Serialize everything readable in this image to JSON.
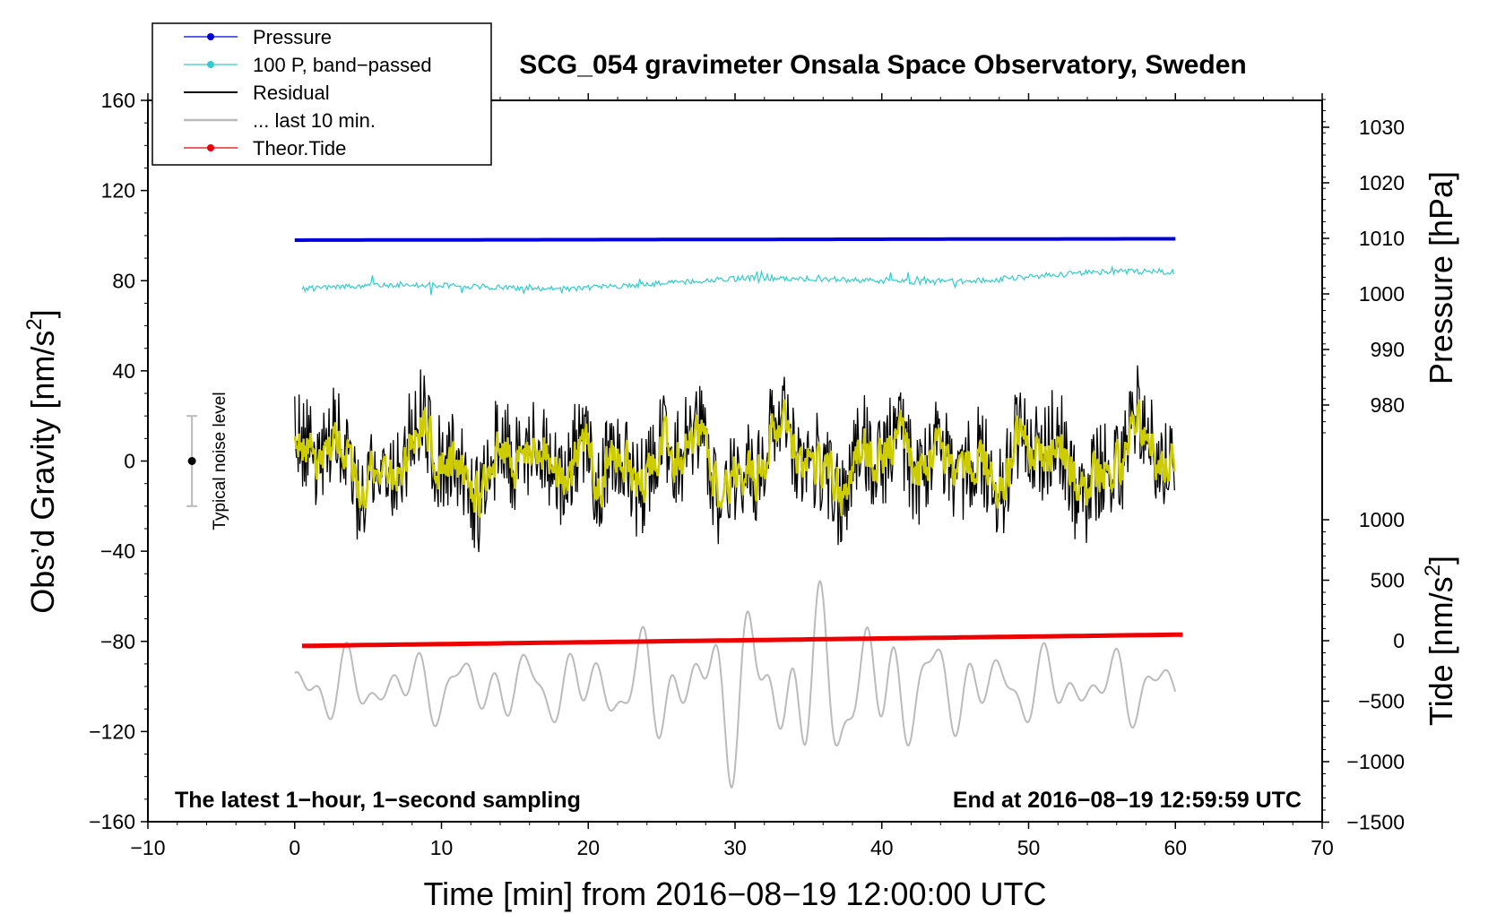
{
  "chart_data": {
    "type": "line",
    "title": "SCG_054 gravimeter Onsala Space Observatory, Sweden",
    "xlabel": "Time [min] from 2016−08−19 12:00:00 UTC",
    "xlim": [
      -10,
      70
    ],
    "xticks": [
      -10,
      0,
      10,
      20,
      30,
      40,
      50,
      60,
      70
    ],
    "xtick_labels": [
      "−10",
      "0",
      "10",
      "20",
      "30",
      "40",
      "50",
      "60",
      "70"
    ],
    "y_left": {
      "label": "Obs’d Gravity [nm/s²]",
      "label_main": "Obs’d Gravity [nm/s",
      "label_sup": "2",
      "label_end": "]",
      "ylim": [
        -160,
        160
      ],
      "ticks": [
        160,
        120,
        80,
        40,
        0,
        -40,
        -80,
        -120,
        -160
      ],
      "tick_labels": [
        "160",
        "120",
        "80",
        "40",
        "0",
        "−40",
        "−80",
        "−120",
        "−160"
      ]
    },
    "y_right_pressure": {
      "label": "Pressure [hPa]",
      "ticks": [
        1030,
        1020,
        1010,
        1000,
        990,
        980
      ],
      "tick_labels": [
        "1030",
        "1020",
        "1010",
        "1000",
        "990",
        "980"
      ]
    },
    "y_right_tide": {
      "label": "Tide [nm/s²]",
      "label_main": "Tide [nm/s",
      "label_sup": "2",
      "label_end": "]",
      "ticks": [
        1000,
        500,
        0,
        -500,
        -1000,
        -1500
      ],
      "tick_labels": [
        "1000",
        "500",
        "0",
        "−500",
        "−1000",
        "−1500"
      ]
    },
    "series": [
      {
        "name": "Pressure",
        "color": "#0000dd",
        "plot_y_start": 98.0,
        "plot_y_end": 98.6,
        "x_start": 0,
        "x_end": 60
      },
      {
        "name": "100 P, band−passed",
        "color": "#33cccc",
        "plot_y_center": 80,
        "plot_y_start": 76,
        "plot_y_end": 83,
        "x_start": 0.5,
        "x_end": 60
      },
      {
        "name": "Residual",
        "color": "#000000",
        "plot_y_center": 0,
        "amplitude": 22,
        "x_start": 0,
        "x_end": 60
      },
      {
        "name": "... last 10 min.",
        "color": "#bbbbbb",
        "plot_y_center": -100,
        "x_start": 0,
        "x_end": 60
      },
      {
        "name": "Theor.Tide",
        "color": "#ee0000",
        "plot_y_start": -82,
        "plot_y_end": -77,
        "x_start": 0.5,
        "x_end": 60.5
      }
    ],
    "smoothed_residual_color": "#cccc00",
    "legend_position": "top-left",
    "noise_level": {
      "label": "Typical noise level",
      "x": -7,
      "y": 0,
      "low": -20,
      "high": 20
    },
    "annotations": {
      "bottom_left": "The latest 1−hour, 1−second sampling",
      "bottom_right": "End at 2016−08−19 12:59:59 UTC"
    }
  }
}
